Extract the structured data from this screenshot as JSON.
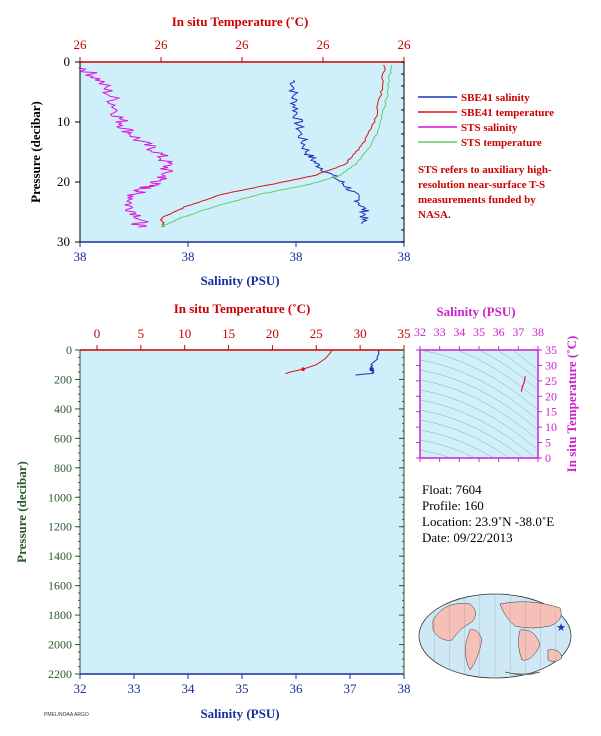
{
  "top_chart": {
    "title_top": "In situ Temperature (˚C)",
    "xlabel": "Salinity (PSU)",
    "ylabel": "Pressure (decibar)",
    "top_ticks": [
      "26",
      "26",
      "26",
      "26",
      "26"
    ],
    "bottom_ticks": [
      "38",
      "38",
      "38",
      "38"
    ],
    "y_ticks": [
      "0",
      "10",
      "20",
      "30"
    ]
  },
  "bottom_chart": {
    "title_top": "In situ Temperature (˚C)",
    "xlabel": "Salinity (PSU)",
    "ylabel": "Pressure (decibar)",
    "top_ticks": [
      "0",
      "5",
      "10",
      "15",
      "20",
      "25",
      "30",
      "35"
    ],
    "bottom_ticks": [
      "32",
      "33",
      "34",
      "35",
      "36",
      "37",
      "38"
    ],
    "y_ticks": [
      "0",
      "200",
      "400",
      "600",
      "800",
      "1000",
      "1200",
      "1400",
      "1600",
      "1800",
      "2000",
      "2200"
    ]
  },
  "ts_chart": {
    "title": "Salinity (PSU)",
    "ylabel": "In situ Temperature (˚C)",
    "x_ticks": [
      "32",
      "33",
      "34",
      "35",
      "36",
      "37",
      "38"
    ],
    "y_ticks": [
      "35",
      "30",
      "25",
      "20",
      "15",
      "10",
      "5",
      "0"
    ]
  },
  "legend": {
    "items": [
      {
        "label": "SBE41 salinity",
        "color": "#1a2fbf"
      },
      {
        "label": "SBE41 temperature",
        "color": "#dd1111"
      },
      {
        "label": "STS salinity",
        "color": "#dd11dd"
      },
      {
        "label": "STS temperature",
        "color": "#66cc66"
      }
    ],
    "note": "STS refers to auxiliary high-resolution near-surface T-S measurements funded by NASA."
  },
  "float_info": {
    "float_line": "Float:  7604",
    "profile_line": "Profile:  160",
    "location_line": "Location:  23.9˚N  -38.0˚E",
    "date_line": "Date:  09/22/2013"
  },
  "footer_text": "PMEL/NOAA ARGO",
  "colors": {
    "plot_bg": "#cff0fa",
    "temperature_axis": "#cc0000",
    "salinity_axis": "#1a2f9f",
    "pressure_axis": "#2e5a2e",
    "ts_axis": "#cc22cc"
  },
  "chart_data": [
    {
      "type": "line",
      "title": "In situ Temperature (˚C)",
      "xlabel": "Salinity (PSU)",
      "ylabel": "Pressure (decibar)",
      "ylim": [
        30,
        0
      ],
      "series": [
        {
          "name": "SBE41 salinity",
          "x": [
            0.66,
            0.66,
            0.67,
            0.68,
            0.7,
            0.73,
            0.78,
            0.83,
            0.86,
            0.88,
            0.87
          ],
          "y": [
            3,
            6,
            9,
            12,
            15,
            17,
            19,
            21,
            23,
            25,
            27
          ]
        },
        {
          "name": "SBE41 temperature",
          "x": [
            0.94,
            0.93,
            0.91,
            0.87,
            0.82,
            0.72,
            0.58,
            0.44,
            0.33,
            0.25,
            0.26
          ],
          "y": [
            0.5,
            5,
            10,
            14,
            17,
            19,
            20.5,
            22,
            24,
            26,
            27.5
          ]
        },
        {
          "name": "STS salinity",
          "x": [
            0.01,
            0.06,
            0.1,
            0.12,
            0.14,
            0.18,
            0.24,
            0.27,
            0.26,
            0.24,
            0.2,
            0.17,
            0.15,
            0.19,
            0.18
          ],
          "y": [
            1,
            3,
            6,
            9,
            11,
            13,
            15,
            17,
            19,
            20,
            21,
            22,
            24,
            26,
            27.5
          ]
        },
        {
          "name": "STS temperature",
          "x": [
            0.96,
            0.95,
            0.93,
            0.9,
            0.85,
            0.8,
            0.7,
            0.56,
            0.42,
            0.31,
            0.25
          ],
          "y": [
            0.5,
            5,
            10,
            14,
            17,
            19,
            20.5,
            22,
            24,
            26,
            27.5
          ]
        }
      ]
    },
    {
      "type": "line",
      "title": "In situ Temperature (˚C)",
      "xlabel": "Salinity (PSU)",
      "ylabel": "Pressure (decibar)",
      "ylim": [
        2200,
        0
      ],
      "series": [
        {
          "name": "SBE41 salinity",
          "x": [
            37.55,
            37.52,
            37.4,
            37.4,
            37.45,
            37.4,
            37.1
          ],
          "y": [
            0,
            50,
            100,
            130,
            150,
            160,
            170
          ]
        },
        {
          "name": "SBE41 temperature",
          "x": [
            26.8,
            26.6,
            26.0,
            25.0,
            23.5,
            22.0,
            21.5
          ],
          "y": [
            0,
            20,
            60,
            100,
            130,
            150,
            160
          ]
        }
      ]
    },
    {
      "type": "line",
      "title": "Salinity (PSU)",
      "ylabel": "In situ Temperature (˚C)",
      "xlim": [
        32,
        38
      ],
      "ylim": [
        0,
        35
      ],
      "series": [
        {
          "name": "T-S",
          "x": [
            37.35,
            37.3,
            37.2,
            37.15
          ],
          "y": [
            26.5,
            24.5,
            23,
            21.5
          ]
        }
      ]
    }
  ]
}
